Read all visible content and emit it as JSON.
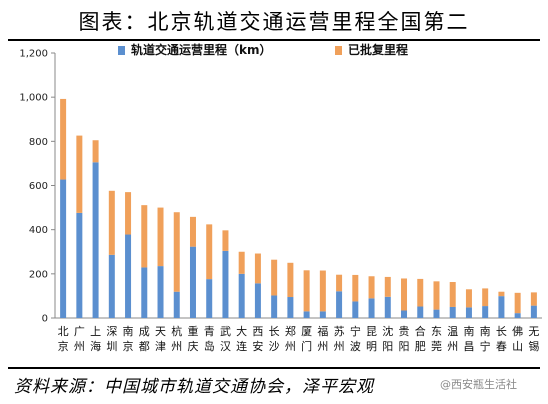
{
  "header": {
    "title": "图表：北京轨道交通运营里程全国第二"
  },
  "footer": {
    "source": "资料来源：中国城市轨道交通协会，泽平宏观",
    "watermark": "@西安瓶生活社"
  },
  "colors": {
    "operating": "#5b8fcf",
    "approved": "#f0a05a",
    "axis": "#888888"
  },
  "chart_data": {
    "type": "bar",
    "stacked": true,
    "title": "图表：北京轨道交通运营里程全国第二",
    "ylim": [
      0,
      1200
    ],
    "yticks": [
      0,
      200,
      400,
      600,
      800,
      1000,
      1200
    ],
    "ytick_labels": [
      "0",
      "200",
      "400",
      "600",
      "800",
      "1,000",
      "1,200"
    ],
    "legend_position": "top",
    "categories": [
      "北京",
      "广州",
      "上海",
      "深圳",
      "南京",
      "成都",
      "天津",
      "杭州",
      "重庆",
      "青岛",
      "武汉",
      "大连",
      "西安",
      "长沙",
      "郑州",
      "厦门",
      "福州",
      "苏州",
      "宁波",
      "昆明",
      "沈阳",
      "贵阳",
      "合肥",
      "东莞",
      "温州",
      "南昌",
      "南宁",
      "长春",
      "佛山",
      "无锡"
    ],
    "series": [
      {
        "name": "轨道交通运营里程（km）",
        "values": [
          627,
          476,
          705,
          286,
          378,
          229,
          235,
          119,
          323,
          176,
          304,
          200,
          157,
          102,
          95,
          30,
          30,
          121,
          75,
          89,
          96,
          34,
          52,
          38,
          50,
          48,
          54,
          99,
          22,
          56
        ]
      },
      {
        "name": "已批复里程",
        "values": [
          365,
          350,
          100,
          290,
          192,
          282,
          265,
          360,
          135,
          248,
          93,
          100,
          135,
          162,
          155,
          186,
          185,
          75,
          120,
          100,
          90,
          145,
          125,
          128,
          113,
          82,
          80,
          20,
          92,
          60
        ]
      }
    ]
  }
}
